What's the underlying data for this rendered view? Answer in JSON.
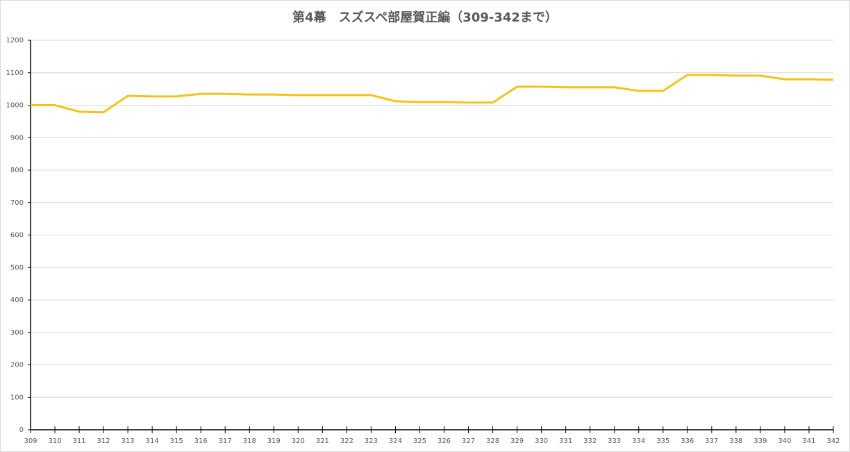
{
  "chart_data": {
    "type": "line",
    "title": "第4幕　スズスペ部屋賀正編（309-342まで）",
    "x": [
      309,
      310,
      311,
      312,
      313,
      314,
      315,
      316,
      317,
      318,
      319,
      320,
      321,
      322,
      323,
      324,
      325,
      326,
      327,
      328,
      329,
      330,
      331,
      332,
      333,
      334,
      335,
      336,
      337,
      338,
      339,
      340,
      341,
      342
    ],
    "series": [
      {
        "color": "#f5c21b",
        "values": [
          1000,
          1000,
          980,
          978,
          1029,
          1027,
          1027,
          1035,
          1035,
          1033,
          1033,
          1031,
          1031,
          1031,
          1031,
          1012,
          1010,
          1010,
          1008,
          1008,
          1057,
          1057,
          1055,
          1055,
          1055,
          1044,
          1044,
          1093,
          1093,
          1091,
          1091,
          1080,
          1080,
          1078
        ]
      }
    ],
    "xlim": [
      309,
      342
    ],
    "xticks": [
      309,
      310,
      311,
      312,
      313,
      314,
      315,
      316,
      317,
      318,
      319,
      320,
      321,
      322,
      323,
      324,
      325,
      326,
      327,
      328,
      329,
      330,
      331,
      332,
      333,
      334,
      335,
      336,
      337,
      338,
      339,
      340,
      341,
      342
    ],
    "ylim": [
      0,
      1200
    ],
    "yticks": [
      0,
      100,
      200,
      300,
      400,
      500,
      600,
      700,
      800,
      900,
      1000,
      1100,
      1200
    ],
    "grid": true
  }
}
